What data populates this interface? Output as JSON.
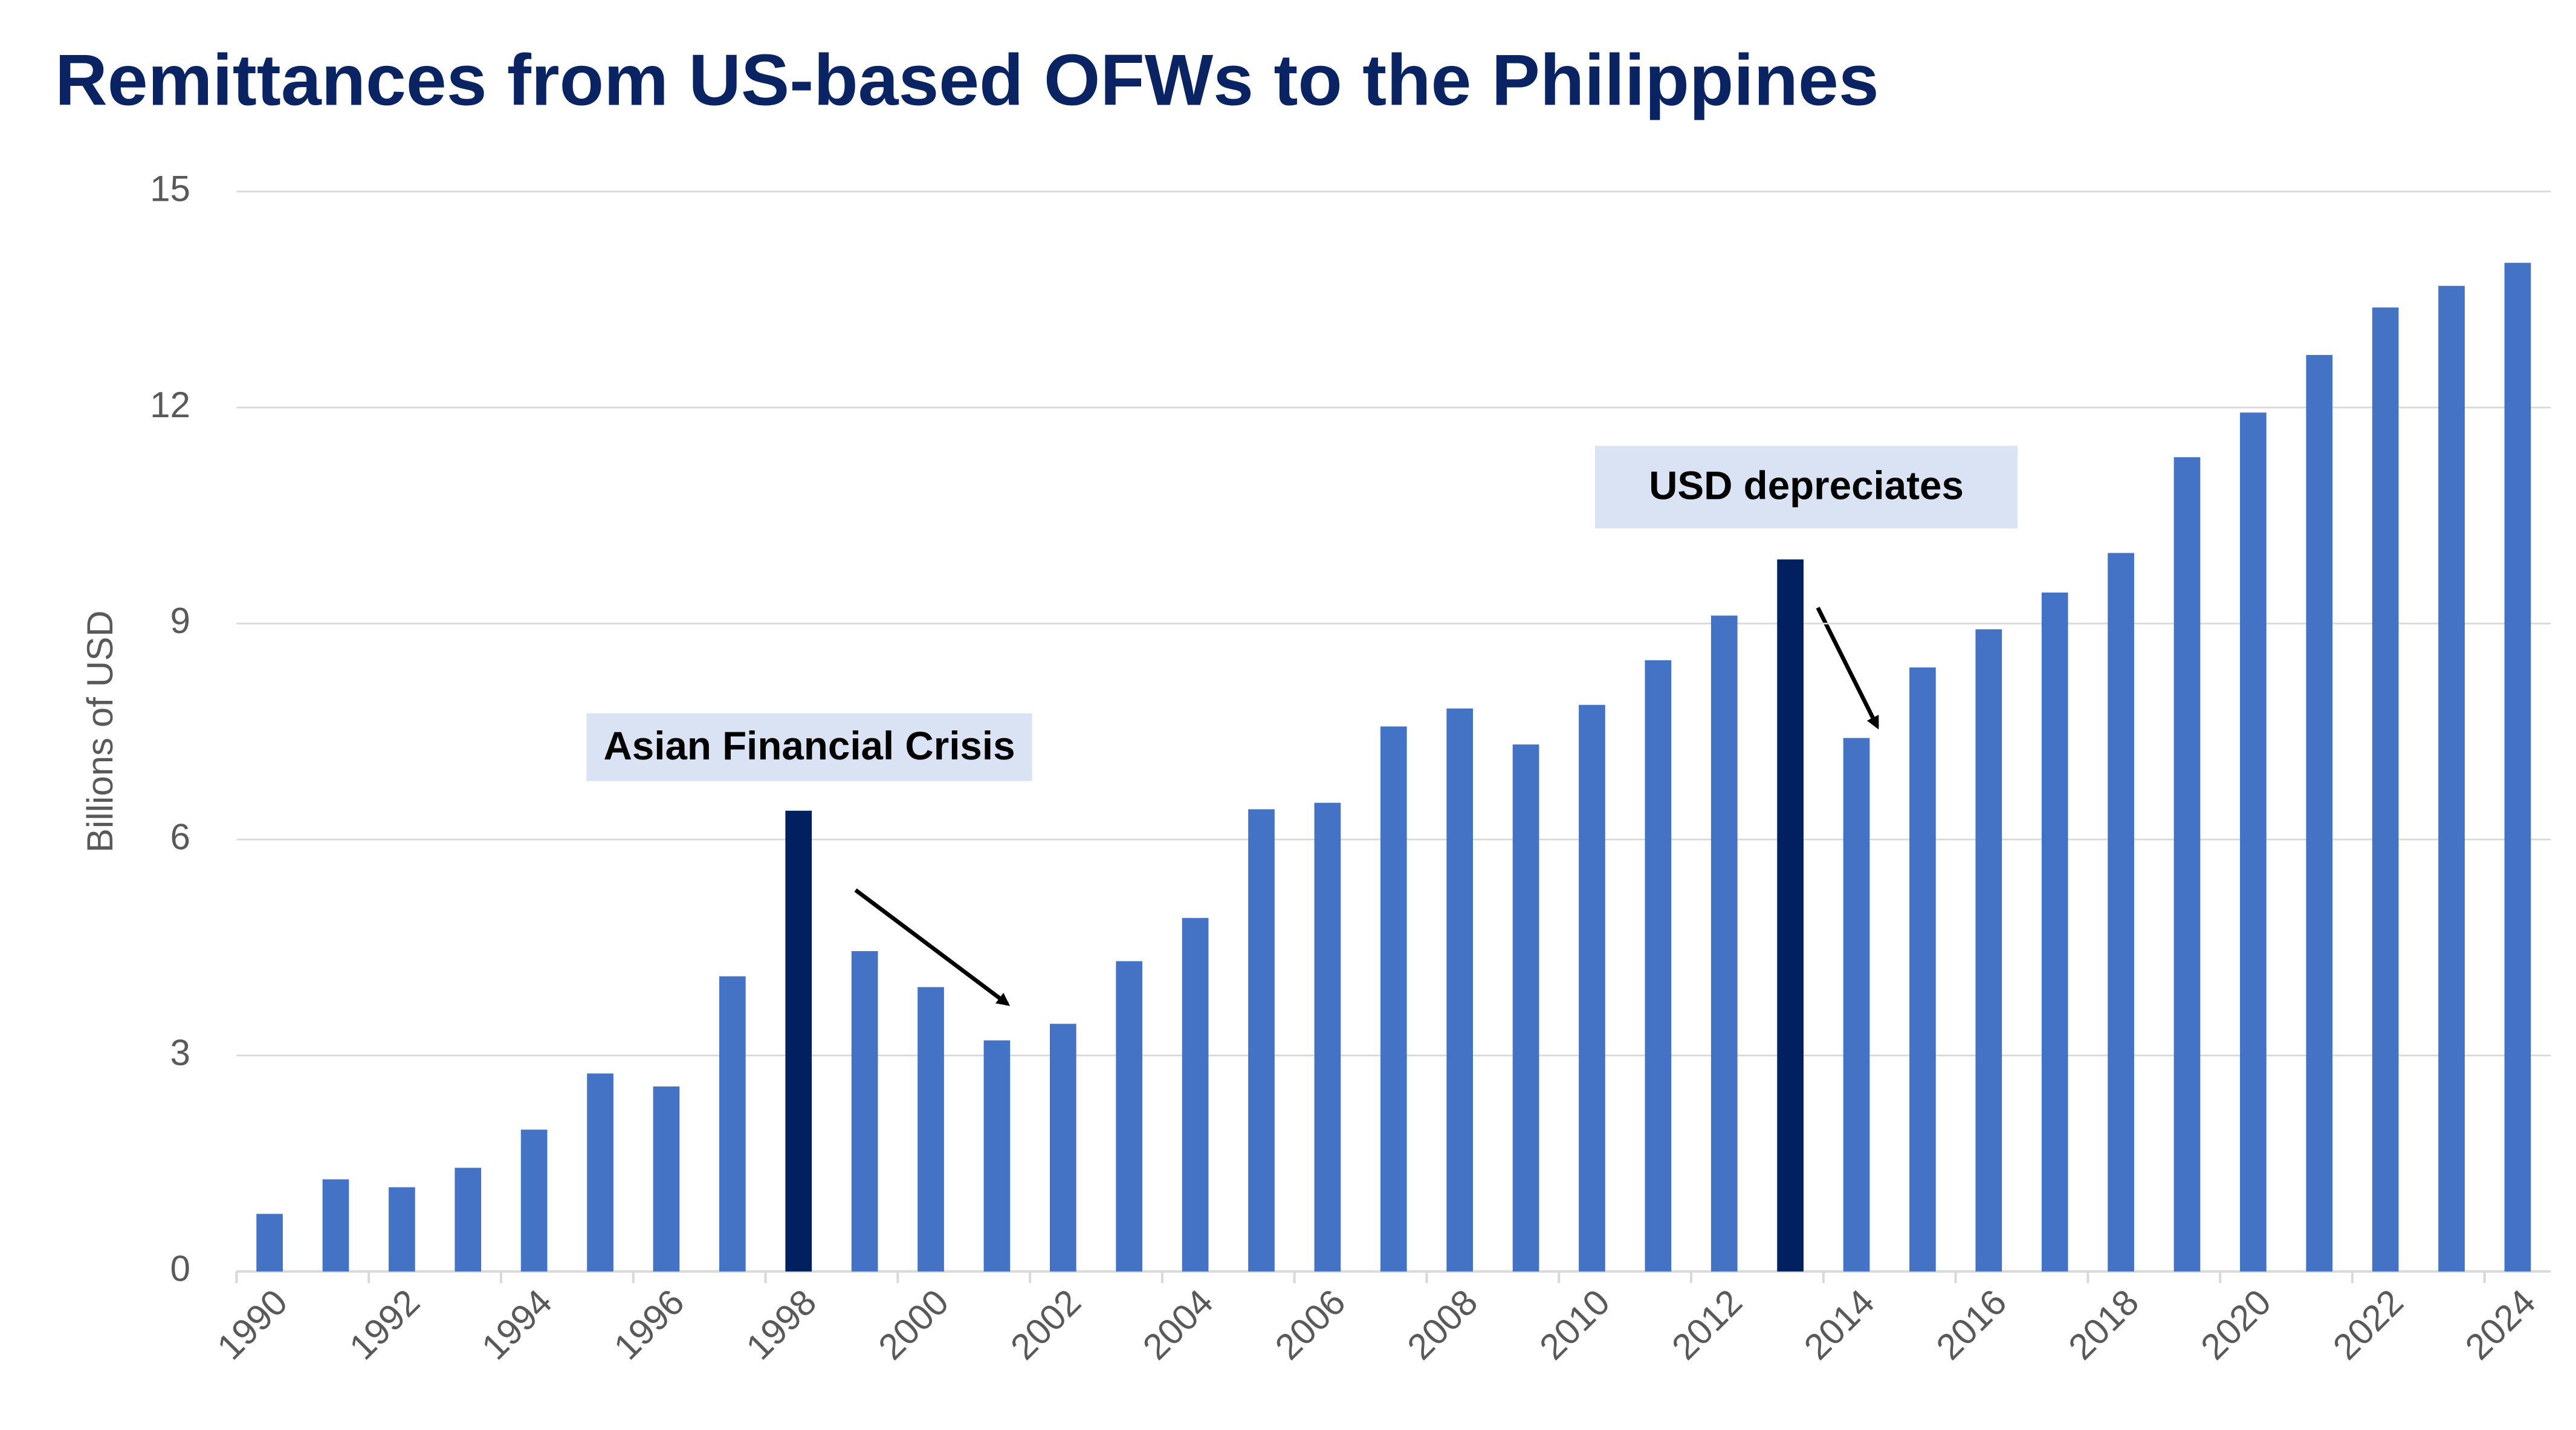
{
  "chart_data": {
    "type": "bar",
    "title": "Remittances from US-based OFWs to the Philippines",
    "y_label": "Billions of USD",
    "categories": [
      "1990",
      null,
      "1992",
      null,
      "1994",
      null,
      "1996",
      null,
      "1998",
      null,
      "2000",
      null,
      "2002",
      null,
      "2004",
      null,
      "2006",
      null,
      "2008",
      null,
      "2010",
      null,
      "2012",
      null,
      "2014",
      null,
      "2016",
      null,
      "2018",
      null,
      "2020",
      null,
      "2022",
      null,
      "2024"
    ],
    "values": [
      0.8,
      1.28,
      1.17,
      1.44,
      1.97,
      2.75,
      2.57,
      4.1,
      6.4,
      4.45,
      3.95,
      3.21,
      3.44,
      4.31,
      4.91,
      6.42,
      6.51,
      7.57,
      7.82,
      7.32,
      7.87,
      8.49,
      9.11,
      9.89,
      7.41,
      8.39,
      8.92,
      9.43,
      9.98,
      11.31,
      11.93,
      12.73,
      13.39,
      13.69,
      14.01
    ],
    "colors": [
      "#4472c4",
      "#4472c4",
      "#4472c4",
      "#4472c4",
      "#4472c4",
      "#4472c4",
      "#4472c4",
      "#4472c4",
      "#002060",
      "#4472c4",
      "#4472c4",
      "#4472c4",
      "#4472c4",
      "#4472c4",
      "#4472c4",
      "#4472c4",
      "#4472c4",
      "#4472c4",
      "#4472c4",
      "#4472c4",
      "#4472c4",
      "#4472c4",
      "#4472c4",
      "#002060",
      "#4472c4",
      "#4472c4",
      "#4472c4",
      "#4472c4",
      "#4472c4",
      "#4472c4",
      "#4472c4",
      "#4472c4",
      "#4472c4",
      "#4472c4",
      "#4472c4"
    ],
    "ylim": [
      0,
      15
    ],
    "yticks": [
      0,
      3,
      6,
      9,
      12,
      15
    ],
    "grid": true,
    "annotations": [
      {
        "text": "Asian Financial Crisis"
      },
      {
        "text": "USD depreciates"
      }
    ]
  }
}
